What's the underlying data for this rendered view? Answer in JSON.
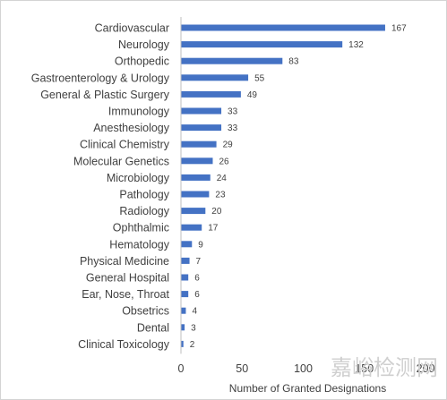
{
  "chart_data": {
    "type": "bar",
    "orientation": "horizontal",
    "categories": [
      "Cardiovascular",
      "Neurology",
      "Orthopedic",
      "Gastroenterology & Urology",
      "General & Plastic Surgery",
      "Immunology",
      "Anesthesiology",
      "Clinical Chemistry",
      "Molecular Genetics",
      "Microbiology",
      "Pathology",
      "Radiology",
      "Ophthalmic",
      "Hematology",
      "Physical Medicine",
      "General Hospital",
      "Ear, Nose, Throat",
      "Obsetrics",
      "Dental",
      "Clinical Toxicology"
    ],
    "values": [
      167,
      132,
      83,
      55,
      49,
      33,
      33,
      29,
      26,
      24,
      23,
      20,
      17,
      9,
      7,
      6,
      6,
      4,
      3,
      2
    ],
    "xlabel": "Number of Granted Designations",
    "ylabel": "",
    "xlim": [
      0,
      200
    ],
    "xticks": [
      0,
      50,
      100,
      150,
      200
    ],
    "grid": false,
    "bar_color": "#4472c4"
  },
  "watermark": {
    "text": "嘉峪检测网"
  }
}
